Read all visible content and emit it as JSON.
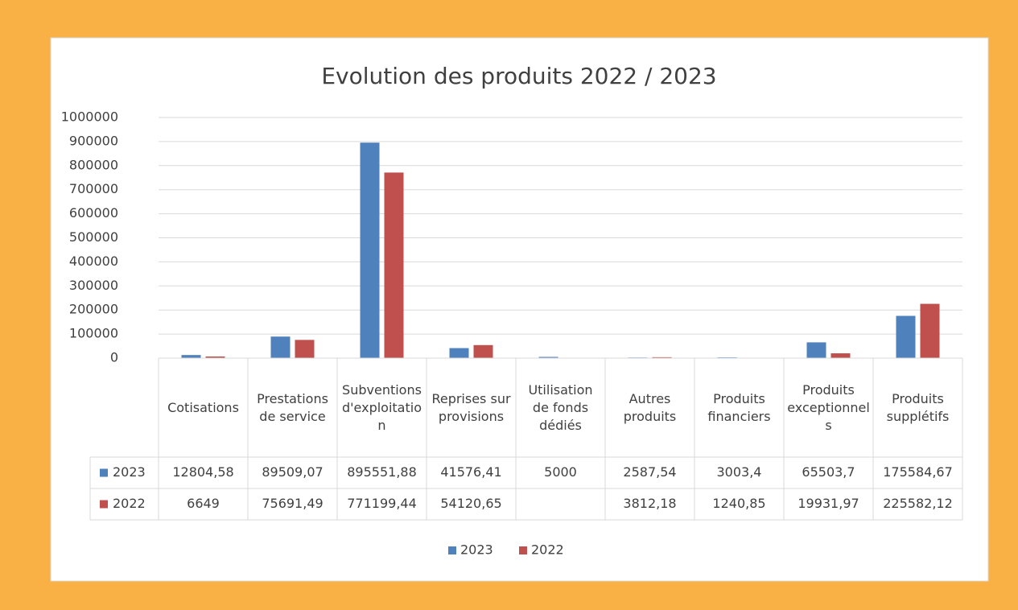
{
  "chart_data": {
    "type": "bar",
    "title": "Evolution des produits 2022 / 2023",
    "categories": [
      "Cotisations",
      "Prestations de service",
      "Subventions d'exploitation",
      "Reprises sur provisions",
      "Utilisation de fonds dédiés",
      "Autres produits",
      "Produits financiers",
      "Produits exceptionnels",
      "Produits supplétifs"
    ],
    "series": [
      {
        "name": "2023",
        "color": "#4f81bd",
        "values": [
          12804.58,
          89509.07,
          895551.88,
          41576.41,
          5000,
          2587.54,
          3003.4,
          65503.7,
          175584.67
        ],
        "value_labels": [
          "12804,58",
          "89509,07",
          "895551,88",
          "41576,41",
          "5000",
          "2587,54",
          "3003,4",
          "65503,7",
          "175584,67"
        ]
      },
      {
        "name": "2022",
        "color": "#c0504d",
        "values": [
          6649,
          75691.49,
          771199.44,
          54120.65,
          null,
          3812.18,
          1240.85,
          19931.97,
          225582.12
        ],
        "value_labels": [
          "6649",
          "75691,49",
          "771199,44",
          "54120,65",
          null,
          "3812,18",
          "1240,85",
          "19931,97",
          "225582,12"
        ]
      }
    ],
    "ylim": [
      0,
      1000000
    ],
    "yticks": [
      0,
      100000,
      200000,
      300000,
      400000,
      500000,
      600000,
      700000,
      800000,
      900000,
      1000000
    ],
    "grid": true,
    "legend": "bottom",
    "data_table": true
  }
}
